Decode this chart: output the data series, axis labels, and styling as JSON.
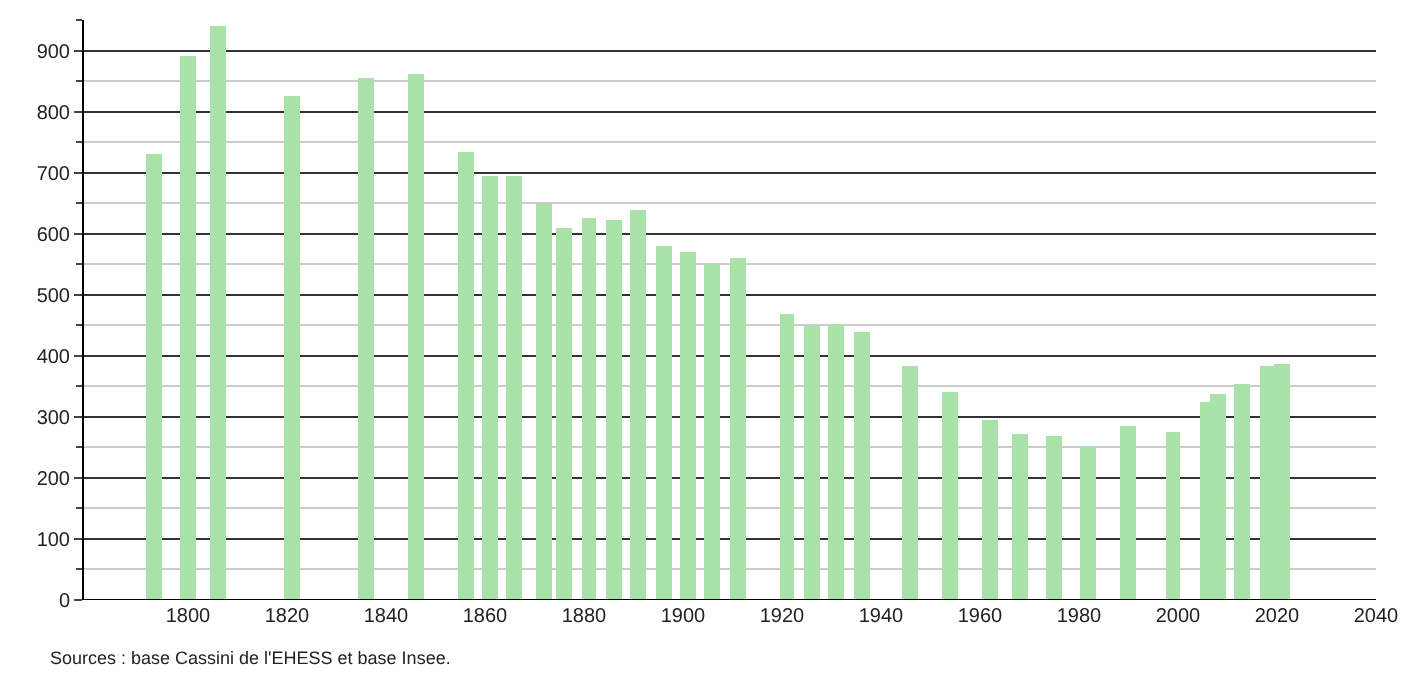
{
  "chart_data": {
    "type": "bar",
    "color": "#a9e2a9",
    "x": [
      1793,
      1800,
      1806,
      1821,
      1836,
      1846,
      1856,
      1861,
      1866,
      1872,
      1876,
      1881,
      1886,
      1891,
      1896,
      1901,
      1906,
      1911,
      1921,
      1926,
      1931,
      1936,
      1946,
      1954,
      1962,
      1968,
      1975,
      1982,
      1990,
      1999,
      2006,
      2008,
      2013,
      2018,
      2021
    ],
    "values": [
      730,
      890,
      940,
      827,
      856,
      863,
      735,
      695,
      693,
      648,
      610,
      626,
      621,
      640,
      580,
      570,
      551,
      559,
      469,
      449,
      452,
      440,
      383,
      342,
      296,
      272,
      268,
      252,
      285,
      276,
      325,
      337,
      353,
      384,
      387
    ],
    "xlim": [
      1779,
      2040
    ],
    "xticks": [
      1800,
      1820,
      1840,
      1860,
      1880,
      1900,
      1920,
      1940,
      1960,
      1980,
      2000,
      2020,
      2040
    ],
    "ylim": [
      0,
      950
    ],
    "yticks": [
      0,
      100,
      200,
      300,
      400,
      500,
      600,
      700,
      800,
      900
    ],
    "grid": "y",
    "annotations": [
      "Sources : base Cassini de l'EHESS et base Insee."
    ]
  }
}
